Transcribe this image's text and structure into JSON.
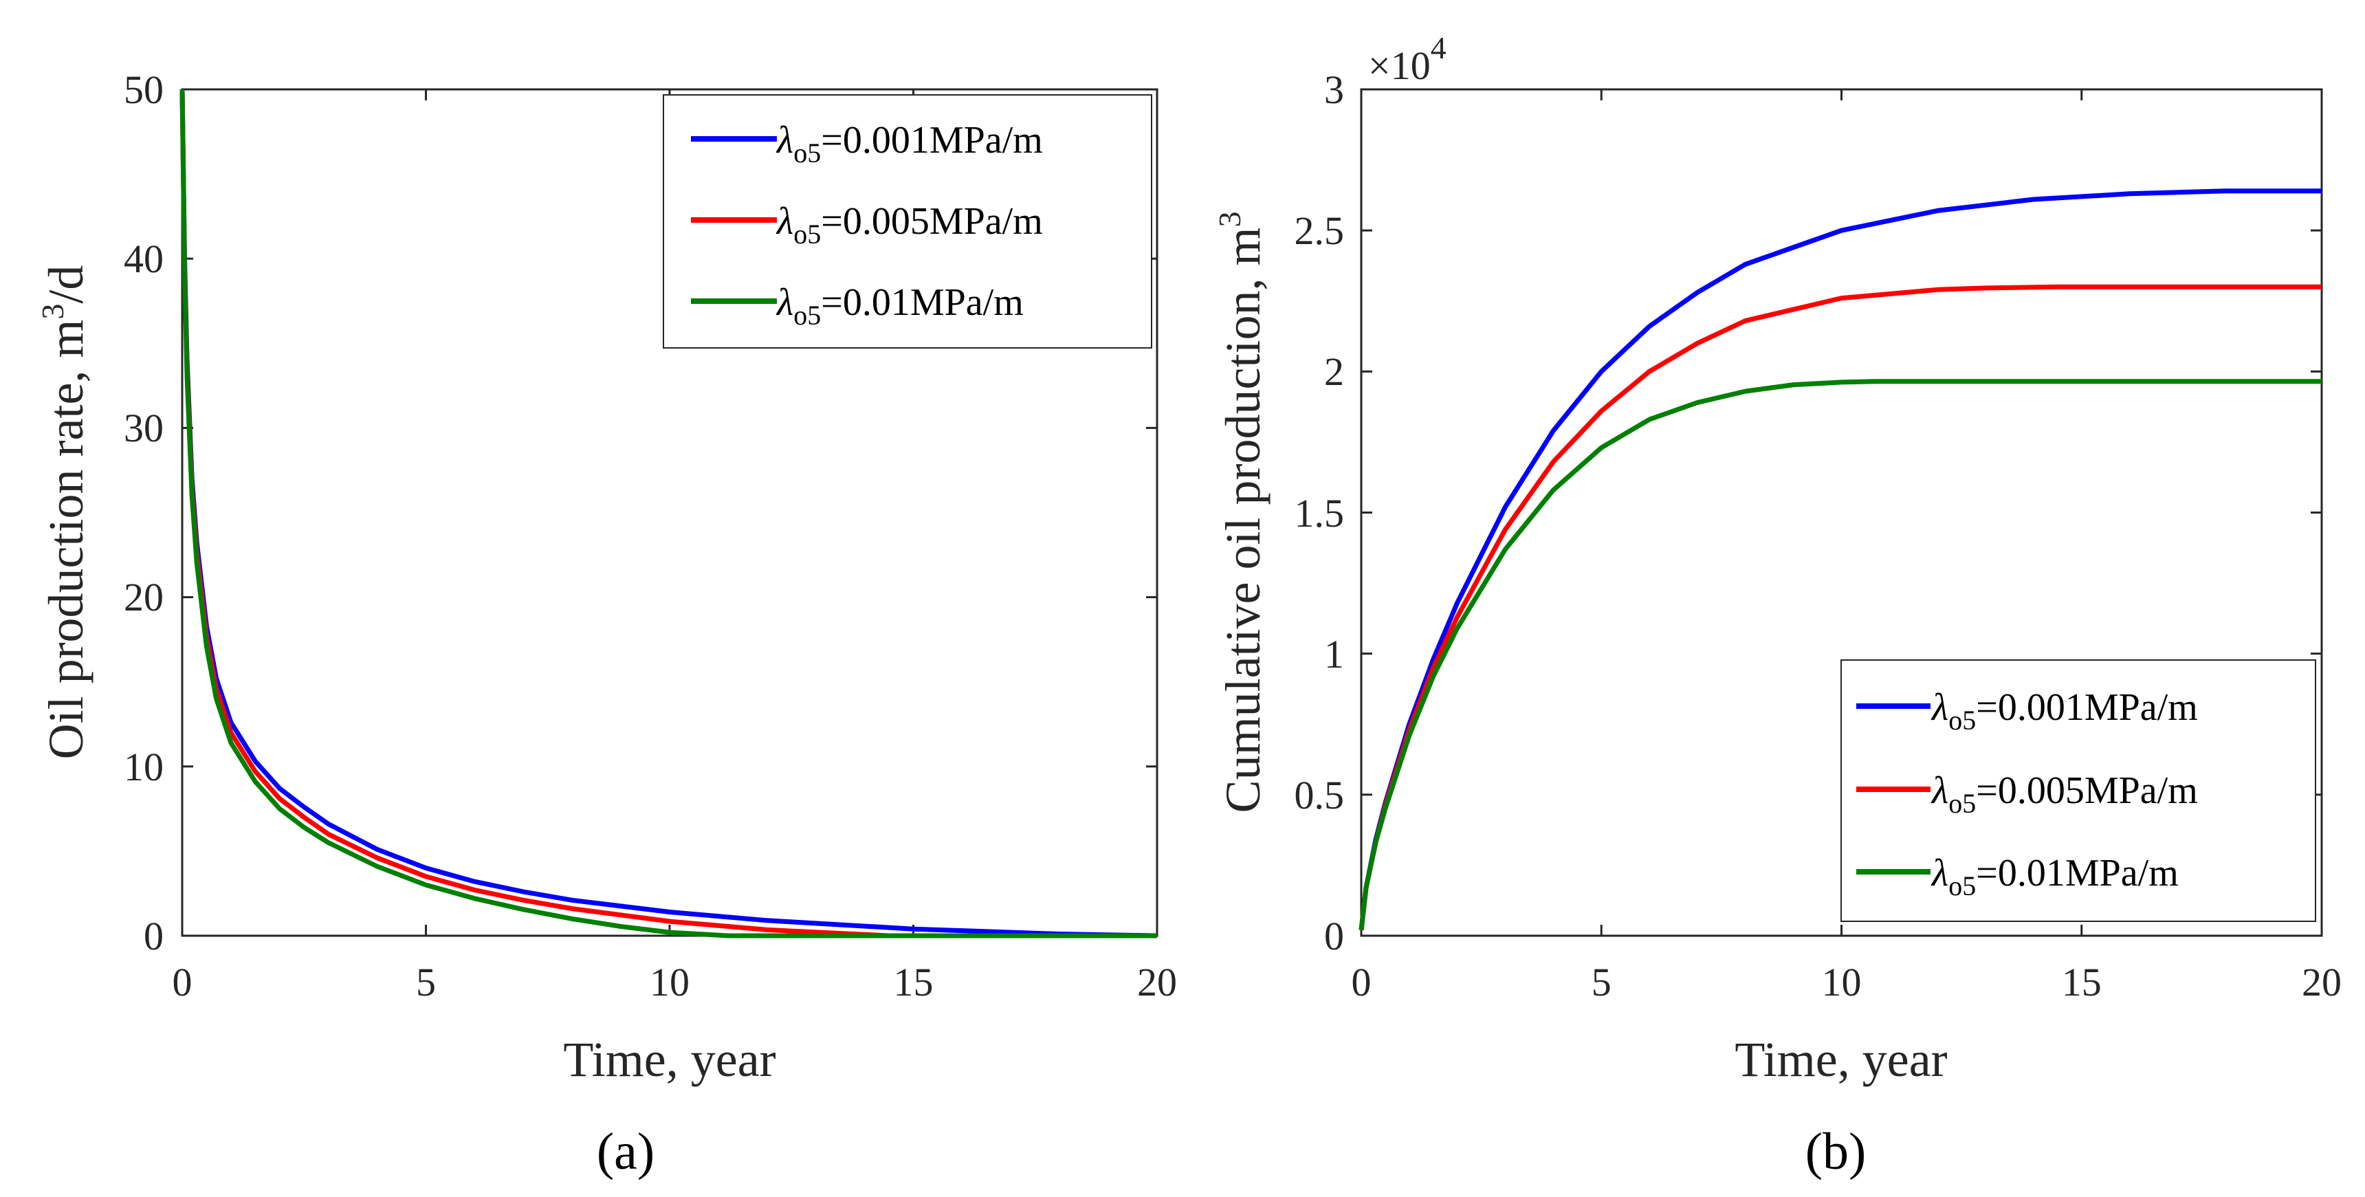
{
  "chart_data": [
    {
      "type": "line",
      "panel_label": "(a)",
      "xlabel": "Time, year",
      "ylabel_prefix": "Oil production rate, m",
      "ylabel_sup": "3",
      "ylabel_suffix": "/d",
      "xlim": [
        0,
        20
      ],
      "ylim": [
        0,
        50
      ],
      "xticks": [
        0,
        5,
        10,
        15,
        20
      ],
      "xtick_labels": [
        "0",
        "5",
        "10",
        "15",
        "20"
      ],
      "yticks": [
        0,
        10,
        20,
        30,
        40,
        50
      ],
      "ytick_labels": [
        "0",
        "10",
        "20",
        "30",
        "40",
        "50"
      ],
      "legend_position": "top-right",
      "series": [
        {
          "name": "λo5=0.001MPa/m",
          "lambda": "λ",
          "sub": "o5",
          "value": "=0.001MPa/m",
          "color": "#0000ff",
          "x": [
            0,
            0.05,
            0.1,
            0.2,
            0.3,
            0.5,
            0.7,
            1,
            1.5,
            2,
            2.5,
            3,
            4,
            5,
            6,
            7,
            8,
            10,
            12,
            15,
            18,
            20
          ],
          "y": [
            50,
            40,
            34,
            27,
            23.2,
            18.3,
            15.2,
            12.6,
            10.3,
            8.7,
            7.6,
            6.6,
            5.1,
            4.0,
            3.2,
            2.6,
            2.1,
            1.4,
            0.9,
            0.4,
            0.1,
            0
          ]
        },
        {
          "name": "λo5=0.005MPa/m",
          "lambda": "λ",
          "sub": "o5",
          "value": "=0.005MPa/m",
          "color": "#ff0000",
          "x": [
            0,
            0.05,
            0.1,
            0.2,
            0.3,
            0.5,
            0.7,
            1,
            1.5,
            2,
            2.5,
            3,
            4,
            5,
            6,
            7,
            8,
            10,
            12,
            14.5,
            20
          ],
          "y": [
            50,
            39.5,
            33.5,
            26.5,
            22.6,
            17.7,
            14.6,
            12.0,
            9.7,
            8.1,
            7.0,
            6.0,
            4.6,
            3.5,
            2.7,
            2.1,
            1.6,
            0.85,
            0.35,
            0,
            0
          ]
        },
        {
          "name": "λo5=0.01MPa/m",
          "lambda": "λ",
          "sub": "o5",
          "value": "=0.01MPa/m",
          "color": "#008000",
          "x": [
            0,
            0.05,
            0.1,
            0.2,
            0.3,
            0.5,
            0.7,
            1,
            1.5,
            2,
            2.5,
            3,
            4,
            5,
            6,
            7,
            8,
            9,
            10,
            11.2,
            20
          ],
          "y": [
            50,
            39,
            33,
            26,
            22,
            17.1,
            14.0,
            11.4,
            9.1,
            7.5,
            6.4,
            5.5,
            4.1,
            3.0,
            2.2,
            1.55,
            1.0,
            0.55,
            0.2,
            0,
            0
          ]
        }
      ]
    },
    {
      "type": "line",
      "panel_label": "(b)",
      "xlabel": "Time, year",
      "ylabel_prefix": "Cumulative oil production, m",
      "ylabel_sup": "3",
      "ylabel_suffix": "",
      "exponent_base": "×10",
      "exponent_power": "4",
      "xlim": [
        0,
        20
      ],
      "ylim": [
        0,
        3
      ],
      "xticks": [
        0,
        5,
        10,
        15,
        20
      ],
      "xtick_labels": [
        "0",
        "5",
        "10",
        "15",
        "20"
      ],
      "yticks": [
        0,
        0.5,
        1,
        1.5,
        2,
        2.5,
        3
      ],
      "ytick_labels": [
        "0",
        "0.5",
        "1",
        "1.5",
        "2",
        "2.5",
        "3"
      ],
      "legend_position": "bottom-right",
      "series": [
        {
          "name": "λo5=0.001MPa/m",
          "lambda": "λ",
          "sub": "o5",
          "value": "=0.001MPa/m",
          "color": "#0000ff",
          "x": [
            0,
            0.1,
            0.3,
            0.5,
            1,
            1.5,
            2,
            3,
            4,
            5,
            6,
            7,
            8,
            10,
            12,
            14,
            16,
            18,
            20
          ],
          "y": [
            0.02,
            0.17,
            0.34,
            0.47,
            0.75,
            0.98,
            1.18,
            1.52,
            1.79,
            2.0,
            2.16,
            2.28,
            2.38,
            2.5,
            2.57,
            2.61,
            2.63,
            2.64,
            2.64
          ]
        },
        {
          "name": "λo5=0.005MPa/m",
          "lambda": "λ",
          "sub": "o5",
          "value": "=0.005MPa/m",
          "color": "#ff0000",
          "x": [
            0,
            0.1,
            0.3,
            0.5,
            1,
            1.5,
            2,
            3,
            4,
            5,
            6,
            7,
            8,
            10,
            12,
            13,
            14.5,
            20
          ],
          "y": [
            0.02,
            0.17,
            0.33,
            0.46,
            0.73,
            0.95,
            1.13,
            1.44,
            1.68,
            1.86,
            2.0,
            2.1,
            2.18,
            2.26,
            2.29,
            2.296,
            2.3,
            2.3
          ]
        },
        {
          "name": "λo5=0.01MPa/m",
          "lambda": "λ",
          "sub": "o5",
          "value": "=0.01MPa/m",
          "color": "#008000",
          "x": [
            0,
            0.1,
            0.3,
            0.5,
            1,
            1.5,
            2,
            3,
            4,
            5,
            6,
            7,
            8,
            9,
            10,
            10.7,
            11.2,
            20
          ],
          "y": [
            0.02,
            0.17,
            0.33,
            0.45,
            0.71,
            0.92,
            1.09,
            1.37,
            1.58,
            1.73,
            1.83,
            1.89,
            1.93,
            1.953,
            1.962,
            1.965,
            1.965,
            1.965
          ]
        }
      ]
    }
  ]
}
